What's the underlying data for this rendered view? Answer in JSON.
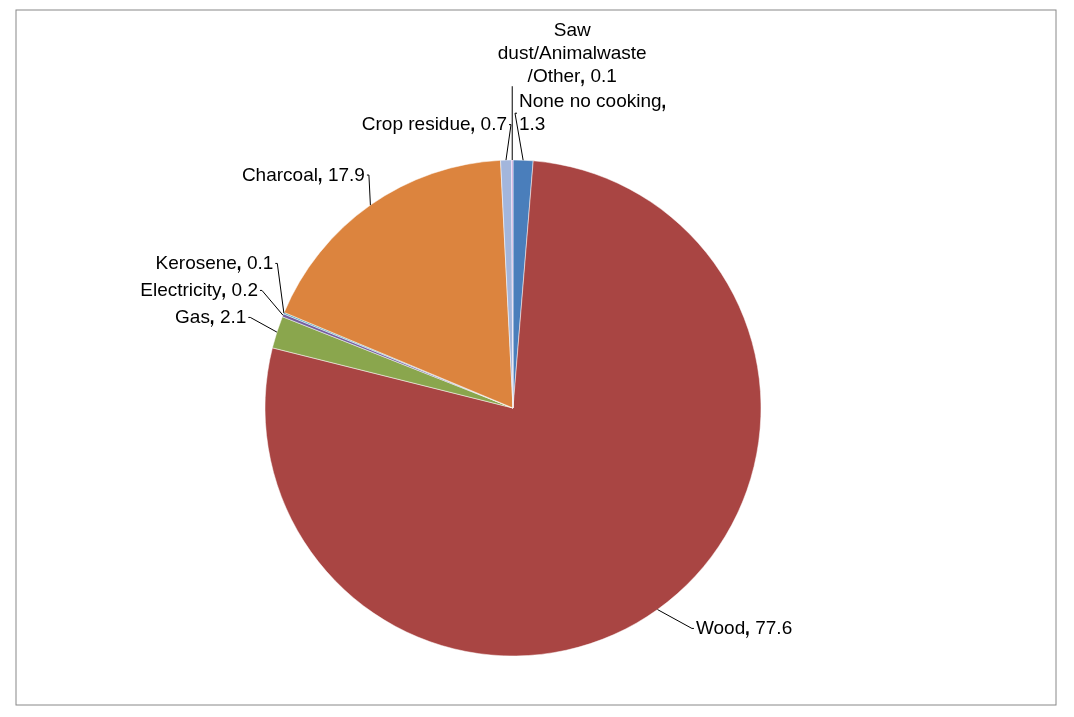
{
  "chart_data": {
    "type": "pie",
    "categories": [
      "None no cooking",
      "Wood",
      "Gas",
      "Electricity",
      "Kerosene",
      "Charcoal",
      "Crop residue",
      "Saw dust/Animalwaste /Other"
    ],
    "values": [
      1.3,
      77.6,
      2.1,
      0.2,
      0.1,
      17.9,
      0.7,
      0.1
    ],
    "colors": [
      "#4a7ebb",
      "#a94543",
      "#8aa64d",
      "#7560a0",
      "#3fa3c0",
      "#dc843e",
      "#a3b6dc",
      "#c9a0dc"
    ],
    "data_labels": true
  }
}
